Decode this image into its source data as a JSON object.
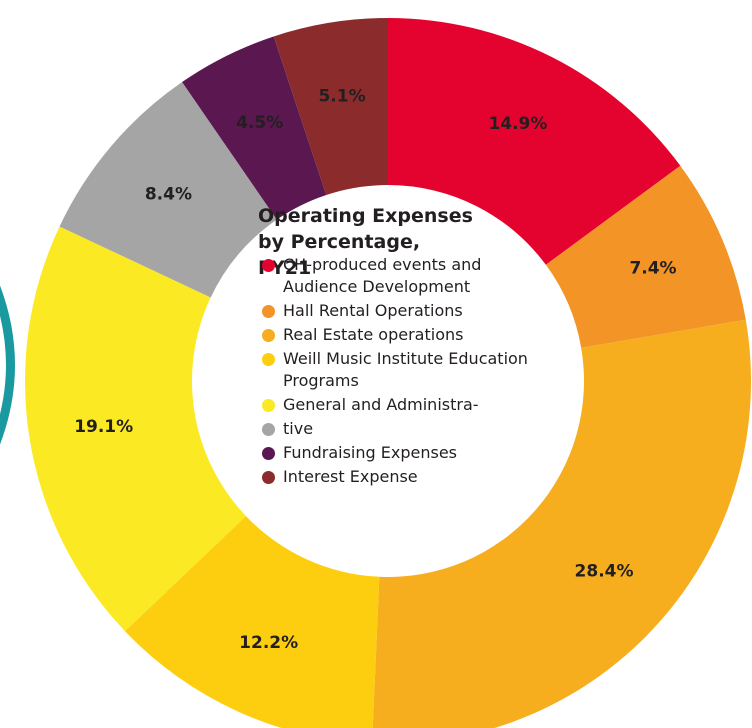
{
  "chart_data": {
    "type": "donut",
    "title": "Operating Expenses by Percentage, FY21",
    "series": [
      {
        "name": "CH-produced events and Audience Development",
        "color": "#e4032e",
        "values": [
          14.9
        ],
        "value_labels": [
          "14.9%"
        ]
      },
      {
        "name": "Hall Rental Operations",
        "color": "#f39426",
        "values": [
          7.4
        ],
        "value_labels": [
          "7.4%"
        ]
      },
      {
        "name": "Real Estate operations",
        "color": "#f6ae1f",
        "values": [
          28.4
        ],
        "value_labels": [
          "28.4%"
        ]
      },
      {
        "name": "Weill Music Institute Education Programs",
        "color": "#fcce0f",
        "values": [
          12.2
        ],
        "value_labels": [
          "12.2%"
        ]
      },
      {
        "name": "General and Administra-",
        "color": "#fbe924",
        "values": [
          19.1
        ],
        "value_labels": [
          "19.1%"
        ]
      },
      {
        "name": "tive",
        "color": "#a5a5a5",
        "values": [
          8.4
        ],
        "value_labels": [
          "8.4%"
        ]
      },
      {
        "name": "Fundraising Expenses",
        "color": "#5a1750",
        "values": [
          4.5
        ],
        "value_labels": [
          "4.5%"
        ]
      },
      {
        "name": "Interest Expense",
        "color": "#8b2b2c",
        "values": [
          5.1
        ],
        "value_labels": [
          "5.1%"
        ]
      }
    ]
  }
}
